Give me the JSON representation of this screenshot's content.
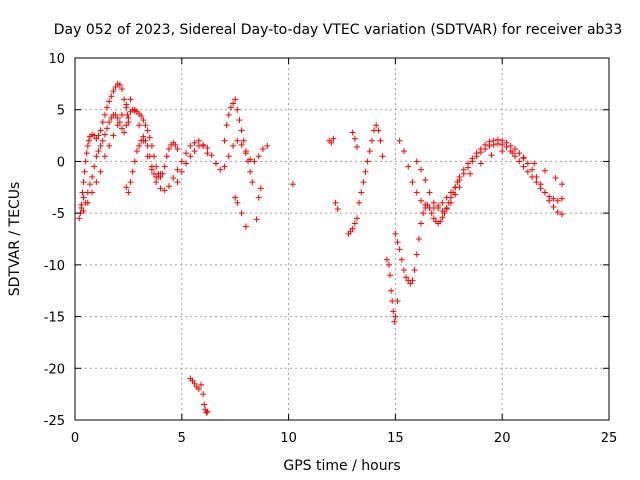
{
  "chart_data": {
    "type": "scatter",
    "title": "Day 052 of 2023, Sidereal Day-to-day VTEC variation (SDTVAR) for receiver ab33",
    "xlabel": "GPS time / hours",
    "ylabel": "SDTVAR / TECUs",
    "xlim": [
      0,
      25
    ],
    "ylim": [
      -25,
      10
    ],
    "xticks": [
      0,
      5,
      10,
      15,
      20,
      25
    ],
    "yticks": [
      10,
      5,
      0,
      -5,
      -10,
      -15,
      -20,
      -25
    ],
    "xtick_labels": [
      "0",
      "5",
      "10",
      "15",
      "20",
      "25"
    ],
    "ytick_labels": [
      "10",
      "5",
      "0",
      "-5",
      "-10",
      "-15",
      "-20",
      "-25"
    ],
    "grid": true,
    "marker": "+",
    "color": "#ff0000",
    "series": [
      {
        "name": "SDTVAR",
        "x": [
          0.2,
          0.25,
          0.3,
          0.35,
          0.4,
          0.45,
          0.5,
          0.55,
          0.6,
          0.65,
          0.7,
          0.8,
          0.9,
          1.0,
          1.1,
          1.2,
          1.3,
          1.4,
          1.5,
          1.6,
          1.7,
          1.8,
          1.9,
          2.0,
          2.1,
          2.2,
          2.3,
          2.4,
          2.45,
          2.5,
          0.3,
          0.4,
          0.5,
          0.6,
          0.7,
          0.8,
          0.9,
          1.0,
          1.1,
          1.2,
          1.3,
          1.4,
          1.5,
          1.6,
          1.7,
          1.8,
          1.9,
          2.0,
          2.1,
          2.2,
          2.3,
          2.4,
          2.5,
          2.6,
          2.7,
          2.8,
          2.9,
          3.0,
          3.1,
          3.2,
          3.3,
          3.4,
          3.5,
          3.6,
          3.7,
          3.8,
          3.9,
          4.0,
          4.1,
          4.2,
          4.3,
          4.4,
          4.5,
          4.6,
          4.7,
          4.8,
          0.4,
          0.6,
          0.8,
          1.0,
          1.2,
          1.4,
          1.6,
          1.8,
          2.0,
          2.2,
          2.4,
          2.6,
          2.8,
          3.0,
          3.2,
          3.4,
          3.6,
          3.8,
          4.0,
          4.2,
          4.4,
          4.6,
          4.8,
          5.0,
          5.2,
          5.4,
          5.6,
          5.8,
          6.0,
          6.2,
          2.4,
          2.5,
          2.6,
          2.7,
          2.8,
          2.9,
          3.0,
          3.1,
          3.2,
          3.3,
          3.4,
          3.5,
          3.6,
          3.7,
          3.8,
          3.9,
          4.0,
          4.8,
          5.0,
          5.2,
          5.4,
          5.6,
          5.8,
          6.0,
          6.2,
          6.4,
          6.6,
          6.8,
          7.0,
          7.2,
          7.4,
          7.6,
          7.8,
          8.0,
          8.2,
          8.4,
          8.6,
          8.8,
          9.0,
          7.0,
          7.1,
          7.2,
          7.3,
          7.4,
          7.5,
          7.6,
          7.7,
          7.8,
          7.9,
          8.0,
          8.1,
          8.2,
          8.3,
          7.5,
          7.6,
          7.8,
          8.0,
          8.5,
          8.6,
          8.7,
          5.4,
          5.5,
          5.6,
          5.7,
          5.8,
          5.9,
          6.0,
          6.05,
          6.1,
          6.15,
          6.2,
          10.2,
          11.9,
          12.0,
          12.1,
          12.8,
          12.9,
          13.0,
          13.1,
          13.2,
          13.3,
          13.4,
          13.5,
          13.6,
          13.7,
          13.8,
          13.9,
          14.0,
          14.1,
          14.2,
          14.3,
          14.4,
          12.2,
          12.3,
          13.0,
          13.1,
          13.2,
          14.6,
          14.7,
          14.75,
          14.8,
          14.85,
          14.9,
          14.95,
          15.0,
          15.1,
          15.0,
          15.1,
          15.2,
          15.3,
          15.4,
          15.5,
          15.6,
          15.7,
          15.8,
          15.9,
          16.0,
          16.1,
          16.2,
          16.3,
          16.4,
          16.5,
          16.6,
          16.7,
          16.8,
          16.9,
          17.0,
          17.1,
          17.2,
          17.3,
          17.4,
          17.5,
          17.6,
          17.7,
          17.8,
          17.9,
          18.0,
          18.2,
          18.4,
          18.6,
          18.8,
          19.0,
          19.2,
          19.4,
          19.6,
          19.8,
          20.0,
          20.2,
          20.4,
          20.6,
          20.8,
          21.0,
          21.2,
          21.4,
          21.6,
          21.8,
          22.0,
          22.2,
          22.4,
          22.6,
          22.8,
          15.2,
          15.4,
          15.6,
          15.8,
          16.0,
          16.2,
          16.4,
          16.6,
          16.8,
          17.0,
          17.2,
          17.4,
          17.6,
          17.8,
          18.0,
          18.2,
          18.4,
          18.6,
          18.8,
          19.0,
          19.2,
          19.4,
          19.6,
          19.8,
          20.0,
          20.2,
          20.4,
          20.6,
          20.8,
          21.0,
          21.2,
          21.4,
          21.6,
          21.8,
          22.0,
          22.2,
          22.4,
          22.6,
          22.8,
          16.0,
          16.2,
          16.4,
          16.6,
          16.8,
          17.0,
          17.2,
          17.4,
          17.6,
          17.8,
          18.0,
          18.5,
          19.0,
          19.5,
          20.0,
          20.5,
          21.0,
          21.5,
          22.0,
          22.5,
          22.8
        ],
        "y": [
          -5.5,
          -5.0,
          -4.2,
          -3.0,
          -2.0,
          -1.0,
          0.0,
          0.8,
          1.5,
          2.0,
          2.4,
          2.6,
          2.5,
          2.2,
          2.5,
          3.0,
          3.8,
          4.5,
          5.2,
          5.8,
          6.3,
          6.8,
          7.2,
          7.5,
          7.4,
          7.0,
          6.0,
          5.2,
          4.5,
          3.8,
          -4.5,
          -4.8,
          -4.0,
          -3.0,
          -2.2,
          -1.5,
          -0.5,
          0.5,
          1.0,
          1.5,
          2.0,
          2.6,
          3.2,
          3.8,
          4.2,
          4.5,
          4.5,
          4.2,
          3.8,
          3.2,
          2.8,
          3.5,
          4.2,
          4.8,
          5.0,
          4.9,
          4.8,
          4.6,
          4.4,
          4.0,
          3.5,
          3.0,
          2.3,
          1.5,
          0.5,
          -0.5,
          -1.2,
          -1.5,
          -1.2,
          -0.5,
          0.5,
          1.2,
          1.6,
          1.8,
          1.6,
          1.2,
          -3.5,
          -4.0,
          -3.0,
          -2.0,
          -1.0,
          0.5,
          1.5,
          2.5,
          3.5,
          4.5,
          5.5,
          6.0,
          5.0,
          3.5,
          2.0,
          0.5,
          -0.8,
          -2.0,
          -2.6,
          -2.8,
          -2.4,
          -1.6,
          -0.8,
          0.0,
          0.8,
          1.5,
          1.8,
          2.0,
          1.5,
          0.8,
          -2.5,
          -3.0,
          -2.0,
          -1.0,
          0.0,
          1.0,
          1.5,
          2.0,
          2.4,
          2.0,
          1.5,
          0.5,
          -0.5,
          -1.2,
          -1.5,
          -1.5,
          -1.2,
          -2.0,
          -1.0,
          -0.2,
          0.5,
          1.0,
          1.5,
          1.6,
          1.3,
          0.6,
          -0.2,
          -0.8,
          -0.5,
          0.5,
          1.5,
          2.0,
          1.6,
          0.8,
          0.2,
          0.0,
          0.5,
          1.2,
          1.5,
          2.0,
          3.5,
          4.5,
          5.2,
          5.6,
          6.0,
          5.0,
          4.0,
          3.0,
          2.0,
          1.0,
          0.0,
          -1.0,
          -2.0,
          -3.5,
          -4.0,
          -5.0,
          -6.3,
          -5.6,
          -3.5,
          -2.6,
          -21.0,
          -21.2,
          -21.5,
          -21.8,
          -22.0,
          -21.6,
          -22.5,
          -23.5,
          -24.0,
          -24.3,
          -24.2,
          -2.2,
          2.0,
          1.8,
          2.2,
          -7.0,
          -6.8,
          -6.5,
          -6.0,
          -5.5,
          -4.0,
          -3.0,
          -2.0,
          -1.0,
          0.0,
          1.0,
          2.0,
          3.0,
          3.5,
          3.0,
          2.0,
          0.5,
          -4.0,
          -4.6,
          2.8,
          2.2,
          1.4,
          -9.5,
          -10.0,
          -11.0,
          -12.5,
          -13.5,
          -14.5,
          -15.5,
          -15.0,
          -13.5,
          -7.0,
          -7.8,
          -8.5,
          -9.5,
          -10.5,
          -11.2,
          -11.5,
          -11.8,
          -11.5,
          -10.5,
          -9.0,
          -7.5,
          -6.0,
          -5.0,
          -4.5,
          -4.2,
          -4.5,
          -5.0,
          -5.5,
          -5.8,
          -6.0,
          -5.8,
          -5.4,
          -5.0,
          -4.5,
          -4.0,
          -3.5,
          -3.0,
          -2.5,
          -2.0,
          -1.5,
          -0.8,
          -0.2,
          0.3,
          0.8,
          1.2,
          1.6,
          1.9,
          2.0,
          2.1,
          2.0,
          1.8,
          1.5,
          1.2,
          0.8,
          0.3,
          -0.2,
          -0.8,
          -1.5,
          -2.2,
          -3.0,
          -3.8,
          -4.4,
          -4.9,
          -5.1,
          2.0,
          1.0,
          -0.5,
          -2.0,
          -3.0,
          -3.8,
          -4.2,
          -4.5,
          -4.5,
          -4.3,
          -4.0,
          -3.5,
          -3.0,
          -2.5,
          -1.8,
          -1.2,
          -0.6,
          0.0,
          0.5,
          0.9,
          1.2,
          1.5,
          1.6,
          1.7,
          1.6,
          1.4,
          1.0,
          0.5,
          0.0,
          -0.5,
          -1.0,
          -1.5,
          -2.0,
          -2.6,
          -3.0,
          -3.4,
          -3.6,
          -3.8,
          -3.6,
          0.0,
          -0.8,
          -1.8,
          -3.0,
          -4.0,
          -4.5,
          -4.8,
          -4.6,
          -4.0,
          -3.2,
          -2.5,
          -1.2,
          -0.2,
          0.6,
          1.0,
          0.8,
          0.4,
          -0.2,
          -0.9,
          -1.6,
          -2.2
        ]
      }
    ]
  }
}
